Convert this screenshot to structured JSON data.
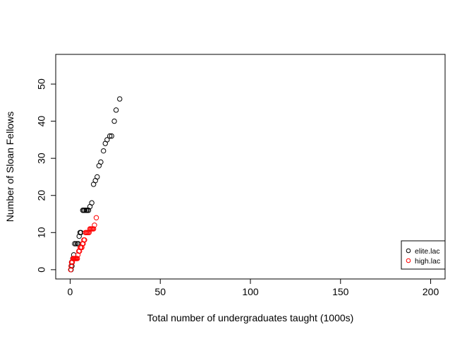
{
  "chart_data": {
    "type": "scatter",
    "xlabel": "Total number of undergraduates taught (1000s)",
    "ylabel": "Number of Sloan Fellows",
    "xlim": [
      -8,
      208
    ],
    "ylim": [
      -2.5,
      58
    ],
    "xticks": [
      0,
      50,
      100,
      150,
      200
    ],
    "yticks": [
      0,
      10,
      20,
      30,
      40,
      50
    ],
    "marker": "open-circle",
    "grid": false,
    "legend_position": "bottom-right",
    "series": [
      {
        "name": "elite.lac",
        "color": "#000000",
        "points": [
          [
            0.5,
            0
          ],
          [
            1.0,
            1
          ],
          [
            0.8,
            2
          ],
          [
            1.5,
            3
          ],
          [
            2.0,
            4
          ],
          [
            2.5,
            7
          ],
          [
            3.2,
            7
          ],
          [
            4.0,
            7
          ],
          [
            4.5,
            7
          ],
          [
            5.0,
            9
          ],
          [
            5.5,
            10
          ],
          [
            6.0,
            10
          ],
          [
            7.0,
            16
          ],
          [
            7.5,
            16
          ],
          [
            8.2,
            16
          ],
          [
            9.0,
            16
          ],
          [
            9.5,
            16
          ],
          [
            10.2,
            16
          ],
          [
            11.0,
            17
          ],
          [
            12.0,
            18
          ],
          [
            13.0,
            23
          ],
          [
            14.0,
            24
          ],
          [
            15.0,
            25
          ],
          [
            16.0,
            28
          ],
          [
            17.0,
            29
          ],
          [
            18.5,
            32
          ],
          [
            19.5,
            34
          ],
          [
            20.5,
            35
          ],
          [
            22.0,
            36
          ],
          [
            23.0,
            36
          ],
          [
            24.5,
            40
          ],
          [
            25.5,
            43
          ],
          [
            27.5,
            46
          ]
        ]
      },
      {
        "name": "high.lac",
        "color": "#ff0000",
        "points": [
          [
            0.3,
            0
          ],
          [
            0.5,
            1
          ],
          [
            0.8,
            2
          ],
          [
            1.2,
            2
          ],
          [
            1.6,
            3
          ],
          [
            2.0,
            3
          ],
          [
            2.4,
            3
          ],
          [
            2.8,
            3
          ],
          [
            3.2,
            3
          ],
          [
            3.6,
            3
          ],
          [
            4.0,
            3
          ],
          [
            4.3,
            4
          ],
          [
            4.8,
            5
          ],
          [
            5.2,
            5
          ],
          [
            5.6,
            6
          ],
          [
            6.0,
            6
          ],
          [
            6.5,
            6
          ],
          [
            6.8,
            7
          ],
          [
            7.2,
            7
          ],
          [
            7.6,
            8
          ],
          [
            8.0,
            8
          ],
          [
            8.5,
            10
          ],
          [
            9.0,
            10
          ],
          [
            9.5,
            10
          ],
          [
            10.0,
            10
          ],
          [
            10.5,
            10
          ],
          [
            11.0,
            11
          ],
          [
            11.5,
            11
          ],
          [
            12.0,
            11
          ],
          [
            12.5,
            11
          ],
          [
            13.0,
            11
          ],
          [
            13.5,
            12
          ],
          [
            14.5,
            14
          ]
        ]
      }
    ]
  }
}
